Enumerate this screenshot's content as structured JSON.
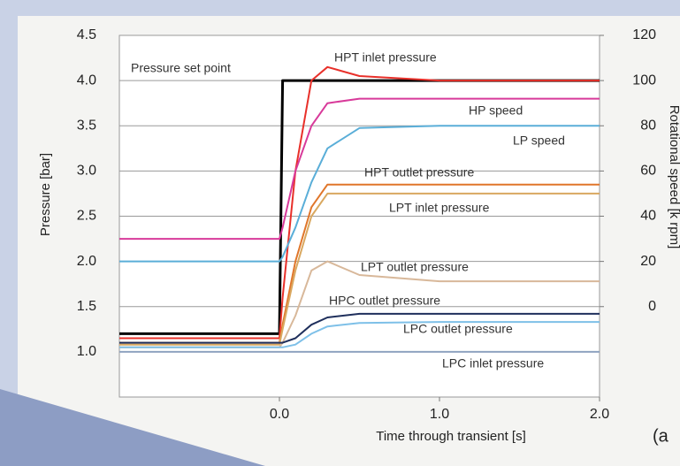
{
  "chart_data": {
    "type": "line",
    "xlabel": "Time through transient [s]",
    "ylabel": "Pressure [bar]",
    "y2label": "Rotational speed [k rpm]",
    "annotation": "(a",
    "x": [
      -1,
      0,
      0.02,
      0.1,
      0.2,
      0.3,
      0.5,
      1.0,
      2.0
    ],
    "xlim": [
      -1,
      2
    ],
    "xticks": [
      {
        "value": 0,
        "label": "0.0"
      },
      {
        "value": 1,
        "label": "1.0"
      },
      {
        "value": 2,
        "label": "2.0"
      }
    ],
    "ylim": [
      0.5,
      4.5
    ],
    "yticks": [
      {
        "value": 1,
        "label": "1.0"
      },
      1.5,
      {
        "value": 2,
        "label": "2.0"
      },
      2.5,
      {
        "value": 3,
        "label": "3.0"
      },
      3.5,
      {
        "value": 4,
        "label": "4.0"
      },
      4.5
    ],
    "y2lim": [
      -40,
      120
    ],
    "y2ticks": [
      0,
      20,
      40,
      60,
      80,
      100,
      120
    ],
    "grid": true,
    "series": [
      {
        "name": "Pressure set point",
        "color": "#000000",
        "values": [
          1.2,
          1.2,
          4.0,
          4.0,
          4.0,
          4.0,
          4.0,
          4.0,
          4.0
        ]
      },
      {
        "name": "HPT inlet pressure",
        "color": "#e8302a",
        "values": [
          1.15,
          1.15,
          1.6,
          3.0,
          4.0,
          4.15,
          4.05,
          4.0,
          4.0
        ]
      },
      {
        "name": "HP speed",
        "color": "#d83a9a",
        "axis": "y2",
        "values": [
          30,
          30,
          35,
          60,
          80,
          90,
          92,
          92,
          92
        ]
      },
      {
        "name": "LP speed",
        "color": "#5aaed8",
        "axis": "y2",
        "values": [
          20,
          20,
          22,
          35,
          55,
          70,
          79,
          80,
          80
        ]
      },
      {
        "name": "HPT outlet pressure",
        "color": "#e0762a",
        "values": [
          1.1,
          1.1,
          1.3,
          2.0,
          2.6,
          2.85,
          2.85,
          2.85,
          2.85
        ]
      },
      {
        "name": "LPT inlet pressure",
        "color": "#d9a860",
        "values": [
          1.08,
          1.08,
          1.25,
          1.9,
          2.5,
          2.75,
          2.75,
          2.75,
          2.75
        ]
      },
      {
        "name": "LPT outlet pressure",
        "color": "#d8b89a",
        "values": [
          1.05,
          1.05,
          1.1,
          1.4,
          1.9,
          2.0,
          1.85,
          1.78,
          1.78
        ]
      },
      {
        "name": "HPC outlet pressure",
        "color": "#1f2f5c",
        "values": [
          1.1,
          1.1,
          1.1,
          1.15,
          1.3,
          1.38,
          1.42,
          1.42,
          1.42
        ]
      },
      {
        "name": "LPC outlet pressure",
        "color": "#7ec0e8",
        "values": [
          1.05,
          1.05,
          1.05,
          1.08,
          1.2,
          1.28,
          1.32,
          1.33,
          1.33
        ]
      },
      {
        "name": "LPC inlet pressure",
        "color": "#8fa3c0",
        "values": [
          1.0,
          1.0,
          1.0,
          1.0,
          1.0,
          1.0,
          1.0,
          1.0,
          1.0
        ]
      }
    ]
  }
}
